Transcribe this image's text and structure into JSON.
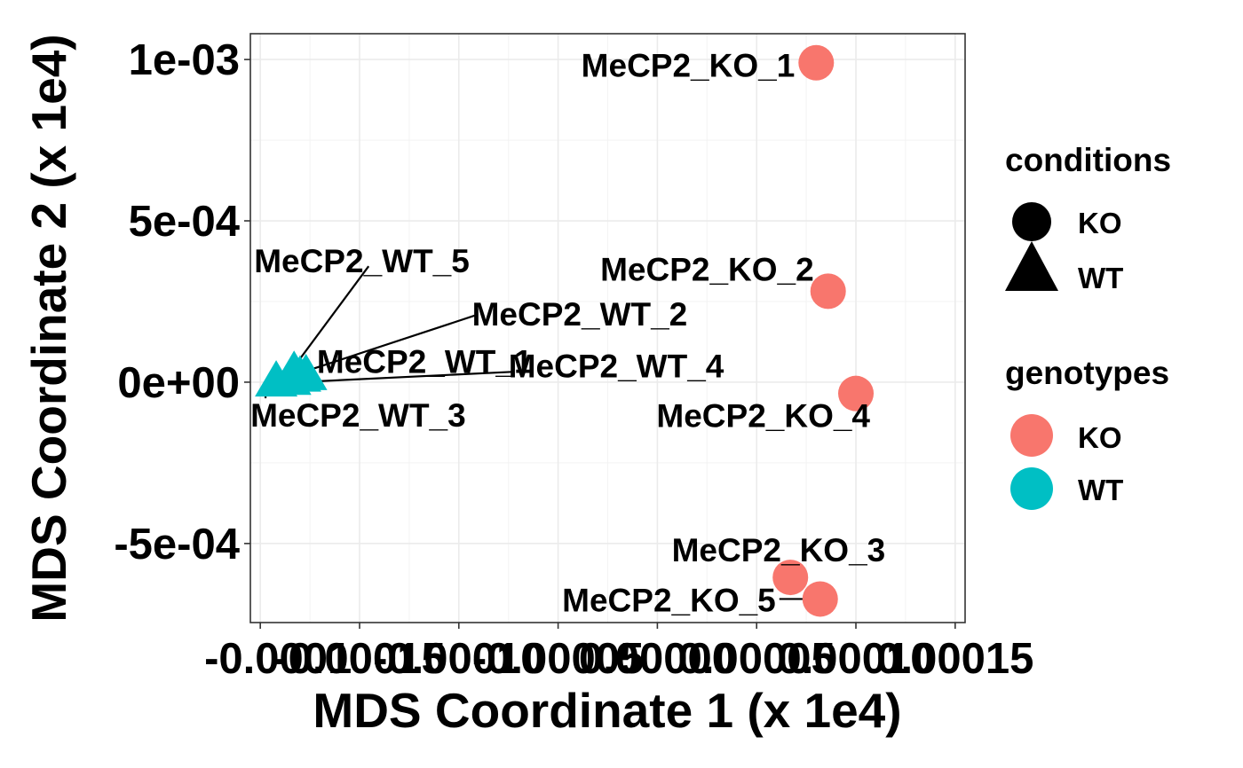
{
  "chart_data": {
    "type": "scatter",
    "xlabel": "MDS Coordinate 1 (x 1e4)",
    "ylabel": "MDS Coordinate 2 (x 1e4)",
    "xlim": [
      -0.000205,
      0.000155
    ],
    "ylim": [
      -0.000745,
      0.00108
    ],
    "x_ticks": [
      -0.0002,
      -0.00015,
      -0.0001,
      -5e-05,
      0,
      5e-05,
      0.0001,
      0.00015
    ],
    "x_tick_labels": [
      "-0.00015",
      "-0.00010",
      "-0.00005",
      "0.00000",
      "0.00005",
      "0.00010",
      "0.00015"
    ],
    "x_tick_label_overlap": "-0.0001",
    "y_ticks": [
      0.001,
      0.0005,
      0,
      -0.0005
    ],
    "y_tick_labels": [
      "1e-03",
      "5e-04",
      "0e+00",
      "-5e-04"
    ],
    "grid": true,
    "legend_position": "right",
    "points": [
      {
        "label": "MeCP2_KO_1",
        "x": 8e-05,
        "y": 0.00099,
        "genotype": "KO",
        "condition": "KO"
      },
      {
        "label": "MeCP2_KO_2",
        "x": 8.6e-05,
        "y": 0.000282,
        "genotype": "KO",
        "condition": "KO"
      },
      {
        "label": "MeCP2_KO_3",
        "x": 6.7e-05,
        "y": -0.000605,
        "genotype": "KO",
        "condition": "KO"
      },
      {
        "label": "MeCP2_KO_4",
        "x": 0.0001,
        "y": -3.5e-05,
        "genotype": "KO",
        "condition": "KO"
      },
      {
        "label": "MeCP2_KO_5",
        "x": 8.2e-05,
        "y": -0.000672,
        "genotype": "KO",
        "condition": "KO"
      },
      {
        "label": "MeCP2_WT_1",
        "x": -0.00018,
        "y": 2e-05,
        "genotype": "WT",
        "condition": "WT"
      },
      {
        "label": "MeCP2_WT_2",
        "x": -0.000177,
        "y": 2.5e-05,
        "genotype": "WT",
        "condition": "WT"
      },
      {
        "label": "MeCP2_WT_3",
        "x": -0.000192,
        "y": 5e-06,
        "genotype": "WT",
        "condition": "WT"
      },
      {
        "label": "MeCP2_WT_4",
        "x": -0.000185,
        "y": 1e-05,
        "genotype": "WT",
        "condition": "WT"
      },
      {
        "label": "MeCP2_WT_5",
        "x": -0.000183,
        "y": 3.5e-05,
        "genotype": "WT",
        "condition": "WT"
      }
    ],
    "legend": {
      "conditions": {
        "title": "conditions",
        "items": [
          {
            "label": "KO",
            "shape": "circle"
          },
          {
            "label": "WT",
            "shape": "triangle"
          }
        ]
      },
      "genotypes": {
        "title": "genotypes",
        "items": [
          {
            "label": "KO",
            "color": "#F8766D"
          },
          {
            "label": "WT",
            "color": "#00BFC4"
          }
        ]
      }
    },
    "colors": {
      "KO": "#F8766D",
      "WT": "#00BFC4"
    }
  }
}
